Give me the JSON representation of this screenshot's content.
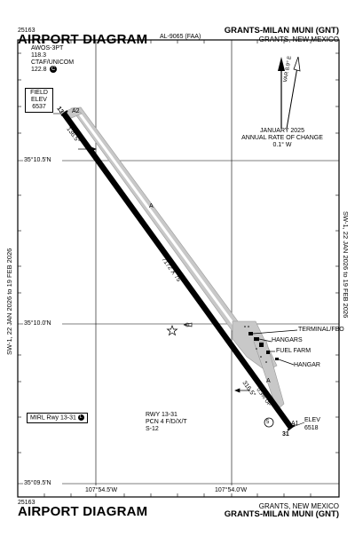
{
  "header": {
    "procedure_number": "25163",
    "title": "AIRPORT DIAGRAM",
    "chart_id": "AL-9065 (FAA)",
    "airport_name": "GRANTS-MILAN MUNI (GNT)",
    "location": "GRANTS, NEW MEXICO"
  },
  "footer": {
    "procedure_number": "25163",
    "title": "AIRPORT DIAGRAM",
    "location": "GRANTS, NEW MEXICO",
    "airport_name": "GRANTS-MILAN MUNI (GNT)"
  },
  "frequencies": {
    "awos_label": "AWOS-3PT",
    "awos_freq": "118.3",
    "ctaf_label": "CTAF/UNICOM",
    "ctaf_freq": "122.8",
    "ctaf_symbol": "C"
  },
  "field_elevation": {
    "line1": "FIELD",
    "line2": "ELEV",
    "value": "6537"
  },
  "magnetic_variation": {
    "var_label": "VAR 8.9° E",
    "date": "JANUARY 2025",
    "change_label": "ANNUAL RATE OF CHANGE",
    "change_value": "0.1° W"
  },
  "side_text": "SW-1, 22 JAN 2026 to 19 FEB 2026",
  "latitudes": [
    "35°10.5'N",
    "35°10.0'N",
    "35°09.5'N"
  ],
  "longitudes": [
    "107°54.5'W",
    "107°54.0'W"
  ],
  "runway": {
    "info_line1": "RWY 13-31",
    "info_line2": "PCN 4 F/D/X/T",
    "info_line3": "S-12",
    "dimensions": "7172 X 75",
    "end_13_label": "13",
    "end_31_label": "31",
    "heading_13": "136.5°",
    "heading_31": "316.5°",
    "end_31_elev_label": "ELEV",
    "end_31_elev": "6518",
    "twy_a_label": "A",
    "twy_a1_label": "A1",
    "twy_a2_label": "A2",
    "slope": "0.3% UP",
    "hold_symbol_31": "5"
  },
  "mirl_label": "MIRL Rwy 13-31",
  "mirl_symbol": "L",
  "facilities": {
    "terminal": "TERMINAL/FBO",
    "hangars": "HANGARS",
    "fuel_farm": "FUEL FARM",
    "hangar": "HANGAR"
  }
}
